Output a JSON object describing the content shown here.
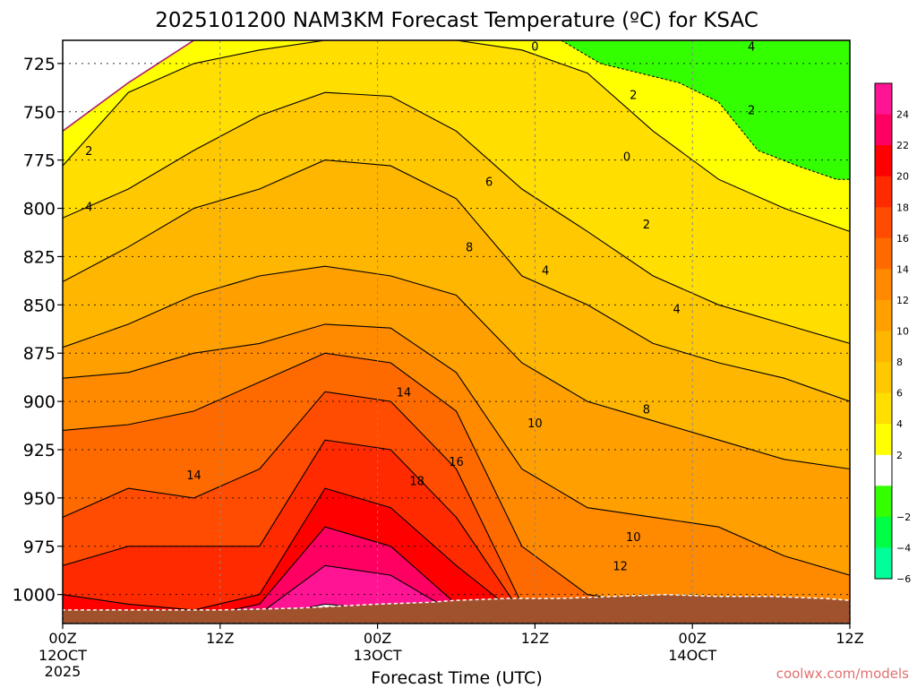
{
  "chart_data": {
    "type": "heatmap",
    "title": "2025101200 NAM3KM Forecast Temperature (ºC) for KSAC",
    "xlabel": "Forecast Time (UTC)",
    "ylabel": "",
    "x_hours": [
      0,
      12,
      24,
      36,
      48,
      60
    ],
    "x_ticks": [
      {
        "hour": 0,
        "label": "00Z",
        "sub": "12OCT",
        "sub2": "2025"
      },
      {
        "hour": 12,
        "label": "12Z",
        "sub": "",
        "sub2": ""
      },
      {
        "hour": 24,
        "label": "00Z",
        "sub": "13OCT",
        "sub2": ""
      },
      {
        "hour": 36,
        "label": "12Z",
        "sub": "",
        "sub2": ""
      },
      {
        "hour": 48,
        "label": "00Z",
        "sub": "14OCT",
        "sub2": ""
      },
      {
        "hour": 60,
        "label": "12Z",
        "sub": "",
        "sub2": ""
      }
    ],
    "ylim_hpa": [
      1015,
      713
    ],
    "y_ticks": [
      725,
      750,
      775,
      800,
      825,
      850,
      875,
      900,
      925,
      950,
      975,
      1000
    ],
    "colorbar": {
      "levels": [
        {
          "label": "24",
          "color": "#ff1493"
        },
        {
          "label": "22",
          "color": "#ff0062"
        },
        {
          "label": "20",
          "color": "#ff0000"
        },
        {
          "label": "18",
          "color": "#ff2a00"
        },
        {
          "label": "16",
          "color": "#ff4c00"
        },
        {
          "label": "14",
          "color": "#ff6a00"
        },
        {
          "label": "12",
          "color": "#ff8a00"
        },
        {
          "label": "10",
          "color": "#ffa000"
        },
        {
          "label": "8",
          "color": "#ffb600"
        },
        {
          "label": "6",
          "color": "#ffc800"
        },
        {
          "label": "4",
          "color": "#ffde00"
        },
        {
          "label": "2",
          "color": "#ffff00"
        },
        {
          "label": "",
          "color": "#ffffff"
        },
        {
          "label": "−2",
          "color": "#33ff00"
        },
        {
          "label": "−4",
          "color": "#00ff44"
        },
        {
          "label": "−6",
          "color": "#00ff99"
        }
      ]
    },
    "field_bands": [
      {
        "t": 0,
        "color": "#ffffff",
        "top": [
          713,
          713,
          713,
          713,
          713,
          713,
          713,
          713,
          713,
          713,
          713,
          713,
          713
        ],
        "bot": [
          760,
          735,
          713,
          713,
          713,
          713,
          713,
          713,
          713,
          713,
          713,
          713,
          713
        ]
      },
      {
        "t": 2,
        "color": "#ffff00",
        "top": [
          760,
          735,
          713,
          713,
          713,
          713,
          713,
          713,
          713,
          713,
          713,
          713,
          713
        ],
        "bot": [
          778,
          740,
          725,
          718,
          713,
          713,
          713,
          718,
          730,
          760,
          785,
          800,
          812
        ]
      },
      {
        "t": 4,
        "color": "#ffde00",
        "top": [
          778,
          740,
          725,
          718,
          713,
          713,
          713,
          718,
          730,
          760,
          785,
          800,
          812
        ],
        "bot": [
          805,
          790,
          770,
          752,
          740,
          742,
          760,
          790,
          812,
          835,
          850,
          860,
          870
        ]
      },
      {
        "t": 6,
        "color": "#ffc800",
        "top": [
          805,
          790,
          770,
          752,
          740,
          742,
          760,
          790,
          812,
          835,
          850,
          860,
          870
        ],
        "bot": [
          838,
          820,
          800,
          790,
          775,
          778,
          795,
          835,
          850,
          870,
          880,
          888,
          900
        ]
      },
      {
        "t": 8,
        "color": "#ffb600",
        "top": [
          838,
          820,
          800,
          790,
          775,
          778,
          795,
          835,
          850,
          870,
          880,
          888,
          900
        ],
        "bot": [
          872,
          860,
          845,
          835,
          830,
          835,
          845,
          880,
          900,
          910,
          920,
          930,
          935
        ]
      },
      {
        "t": 10,
        "color": "#ffa000",
        "top": [
          872,
          860,
          845,
          835,
          830,
          835,
          845,
          880,
          900,
          910,
          920,
          930,
          935
        ],
        "bot": [
          888,
          885,
          875,
          870,
          860,
          862,
          885,
          935,
          955,
          960,
          965,
          980,
          990
        ]
      },
      {
        "t": 12,
        "color": "#ff8a00",
        "top": [
          888,
          885,
          875,
          870,
          860,
          862,
          885,
          935,
          955,
          960,
          965,
          980,
          990
        ],
        "bot": [
          915,
          912,
          905,
          890,
          875,
          880,
          905,
          975,
          1000,
          1005,
          1005,
          1010,
          1012
        ]
      },
      {
        "t": 14,
        "color": "#ff6a00",
        "top": [
          915,
          912,
          905,
          890,
          875,
          880,
          905,
          975,
          1000,
          1005,
          1005,
          1010,
          1012
        ],
        "bot": [
          960,
          945,
          950,
          935,
          895,
          900,
          935,
          1005,
          1010,
          1010,
          1010,
          1012,
          1012
        ]
      },
      {
        "t": 16,
        "color": "#ff4c00",
        "top": [
          960,
          945,
          950,
          935,
          895,
          900,
          935,
          1005,
          1010,
          1010,
          1010,
          1012,
          1012
        ],
        "bot": [
          985,
          975,
          975,
          975,
          920,
          925,
          960,
          1010,
          1012,
          1012,
          1012,
          1012,
          1012
        ]
      },
      {
        "t": 18,
        "color": "#ff2a00",
        "top": [
          985,
          975,
          975,
          975,
          920,
          925,
          960,
          1010,
          1012,
          1012,
          1012,
          1012,
          1012
        ],
        "bot": [
          1000,
          1005,
          1008,
          1000,
          945,
          955,
          985,
          1012,
          1012,
          1012,
          1012,
          1012,
          1012
        ]
      },
      {
        "t": 20,
        "color": "#ff0000",
        "top": [
          1000,
          1005,
          1008,
          1000,
          945,
          955,
          985,
          1012,
          1012,
          1012,
          1012,
          1012,
          1012
        ],
        "bot": [
          1012,
          1012,
          1012,
          1005,
          965,
          975,
          1005,
          1012,
          1012,
          1012,
          1012,
          1012,
          1012
        ]
      },
      {
        "t": 22,
        "color": "#ff0062",
        "top": [
          1012,
          1012,
          1012,
          1005,
          965,
          975,
          1005,
          1012,
          1012,
          1012,
          1012,
          1012,
          1012
        ],
        "bot": [
          1012,
          1012,
          1012,
          1010,
          985,
          990,
          1010,
          1012,
          1012,
          1012,
          1012,
          1012,
          1012
        ]
      },
      {
        "t": 24,
        "color": "#ff1493",
        "top": [
          1012,
          1012,
          1012,
          1010,
          985,
          990,
          1010,
          1012,
          1012,
          1012,
          1012,
          1012,
          1012
        ],
        "bot": [
          1012,
          1012,
          1012,
          1012,
          1005,
          1008,
          1012,
          1012,
          1012,
          1012,
          1012,
          1012,
          1012
        ]
      }
    ],
    "cold_region": {
      "color": "#33ff00",
      "hours": [
        38,
        41,
        44,
        47,
        50,
        53,
        56,
        59,
        60
      ],
      "bottom_hpa": [
        713,
        725,
        730,
        735,
        745,
        770,
        778,
        785,
        785
      ]
    },
    "field_hours": [
      0,
      5,
      10,
      15,
      20,
      25,
      30,
      35,
      40,
      45,
      50,
      55,
      60
    ],
    "contour_labels": [
      {
        "text": "0",
        "hour": 36.0,
        "hpa": 716
      },
      {
        "text": "0",
        "hour": 43.0,
        "hpa": 773
      },
      {
        "text": "2",
        "hour": 2.0,
        "hpa": 770
      },
      {
        "text": "2",
        "hour": 43.5,
        "hpa": 741
      },
      {
        "text": "2",
        "hour": 44.5,
        "hpa": 808
      },
      {
        "text": "2",
        "hour": 52.5,
        "hpa": 749
      },
      {
        "text": "4",
        "hour": 2.0,
        "hpa": 799
      },
      {
        "text": "4",
        "hour": 36.8,
        "hpa": 832
      },
      {
        "text": "4",
        "hour": 46.8,
        "hpa": 852
      },
      {
        "text": "4",
        "hour": 52.5,
        "hpa": 716
      },
      {
        "text": "6",
        "hour": 32.5,
        "hpa": 786
      },
      {
        "text": "8",
        "hour": 31.0,
        "hpa": 820
      },
      {
        "text": "8",
        "hour": 44.5,
        "hpa": 904
      },
      {
        "text": "10",
        "hour": 36.0,
        "hpa": 911
      },
      {
        "text": "10",
        "hour": 43.5,
        "hpa": 970
      },
      {
        "text": "12",
        "hour": 42.5,
        "hpa": 985
      },
      {
        "text": "14",
        "hour": 10.0,
        "hpa": 938
      },
      {
        "text": "14",
        "hour": 26.0,
        "hpa": 895
      },
      {
        "text": "16",
        "hour": 30.0,
        "hpa": 931
      },
      {
        "text": "18",
        "hour": 27.0,
        "hpa": 941
      }
    ],
    "terrain": {
      "color": "#a0522d",
      "hours": [
        0,
        6,
        12,
        18,
        24,
        28,
        30,
        34,
        38,
        42,
        46,
        50,
        54,
        58,
        60
      ],
      "surface_hpa": [
        1008,
        1008,
        1008,
        1007,
        1005,
        1004,
        1003,
        1002,
        1002,
        1001,
        1000,
        1001,
        1001,
        1002,
        1003
      ]
    }
  },
  "footer": {
    "credit": "coolwx.com/models"
  }
}
